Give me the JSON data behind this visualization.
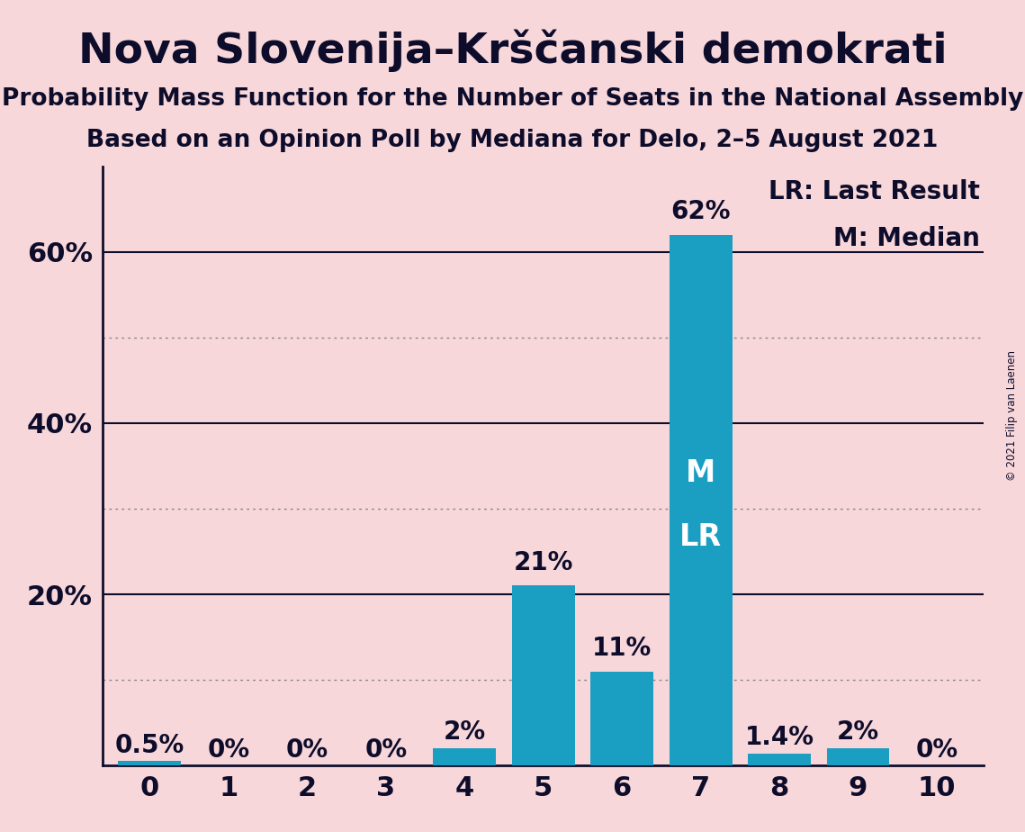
{
  "title": "Nova Slovenija–Krščanski demokrati",
  "subtitle1": "Probability Mass Function for the Number of Seats in the National Assembly",
  "subtitle2": "Based on an Opinion Poll by Mediana for Delo, 2–5 August 2021",
  "copyright": "© 2021 Filip van Laenen",
  "categories": [
    0,
    1,
    2,
    3,
    4,
    5,
    6,
    7,
    8,
    9,
    10
  ],
  "values": [
    0.5,
    0.0,
    0.0,
    0.0,
    2.0,
    21.0,
    11.0,
    62.0,
    1.4,
    2.0,
    0.0
  ],
  "labels": [
    "0.5%",
    "0%",
    "0%",
    "0%",
    "2%",
    "21%",
    "11%",
    "62%",
    "1.4%",
    "2%",
    "0%"
  ],
  "bar_color": "#1a9ec2",
  "background_color": "#f8d7da",
  "median_seat": 7,
  "last_result_seat": 7,
  "median_label": "M",
  "lr_label": "LR",
  "legend_lr": "LR: Last Result",
  "legend_m": "M: Median",
  "ytick_labels": [
    "20%",
    "40%",
    "60%"
  ],
  "ytick_values": [
    20,
    40,
    60
  ],
  "ylim": [
    0,
    70
  ],
  "solid_gridlines": [
    20,
    40,
    60
  ],
  "dotted_gridlines": [
    10,
    30,
    50
  ],
  "title_fontsize": 34,
  "subtitle_fontsize": 19,
  "tick_fontsize": 22,
  "legend_fontsize": 20,
  "bar_label_fontsize": 20,
  "inbar_label_fontsize": 24,
  "text_color": "#0d0d2b",
  "grid_solid_color": "#0d0d2b",
  "grid_dotted_color": "#888888",
  "spine_color": "#0d0d2b"
}
